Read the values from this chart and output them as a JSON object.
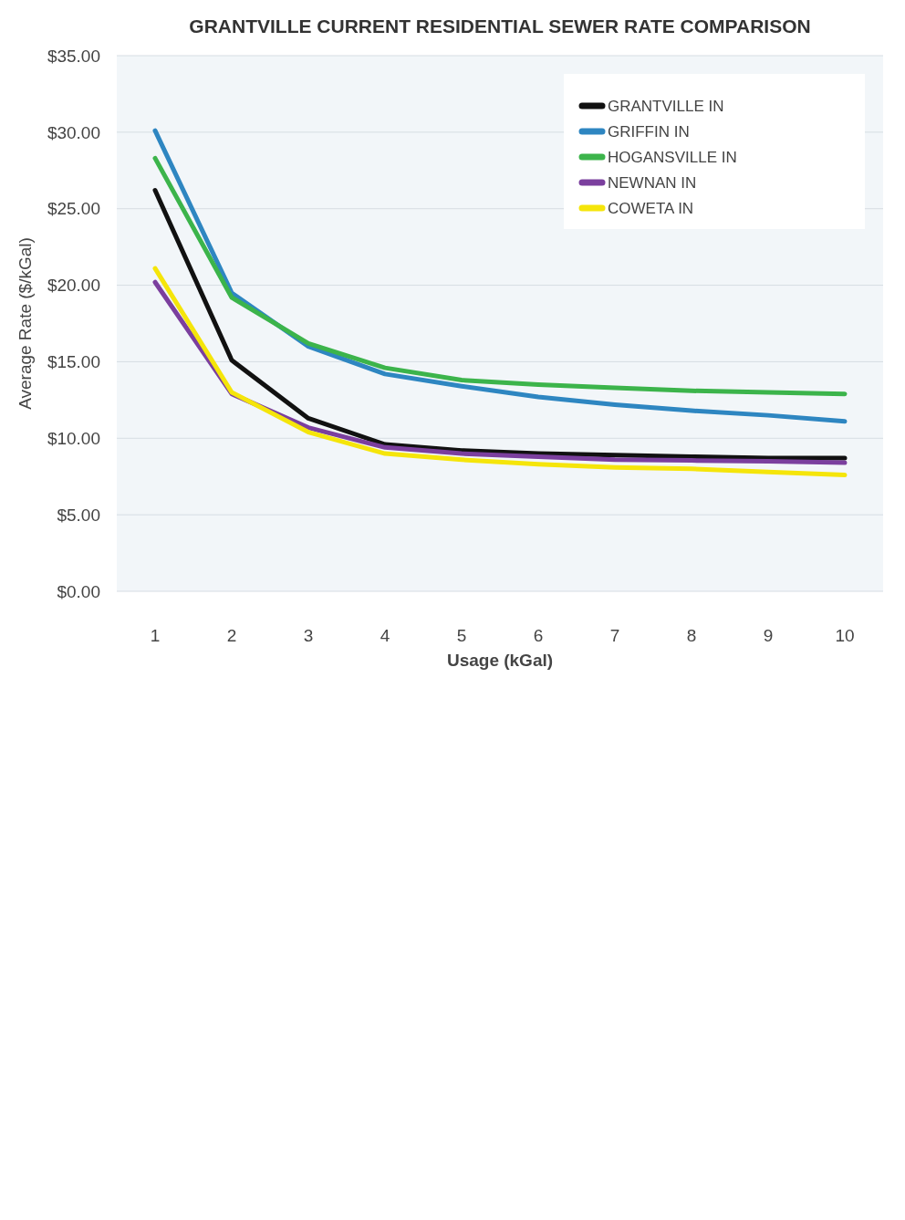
{
  "chart_data": {
    "type": "line",
    "title": "GRANTVILLE CURRENT RESIDENTIAL SEWER RATE COMPARISON",
    "xlabel": "Usage (kGal)",
    "ylabel": "Average Rate ($/kGal)",
    "categories": [
      "1",
      "2",
      "3",
      "4",
      "5",
      "6",
      "7",
      "8",
      "9",
      "10"
    ],
    "ylim": [
      0,
      35
    ],
    "yticks": [
      {
        "value": 0,
        "label": "$0.00"
      },
      {
        "value": 5,
        "label": "$5.00"
      },
      {
        "value": 10,
        "label": "$10.00"
      },
      {
        "value": 15,
        "label": "$15.00"
      },
      {
        "value": 20,
        "label": "$20.00"
      },
      {
        "value": 25,
        "label": "$25.00"
      },
      {
        "value": 30,
        "label": "$30.00"
      },
      {
        "value": 35,
        "label": "$35.00"
      }
    ],
    "grid": "y",
    "legend": "top right",
    "marker": "none",
    "line_style": "solid",
    "series": [
      {
        "name": "GRANTVILLE IN",
        "color": "#111111",
        "values": [
          26.2,
          15.1,
          11.3,
          9.6,
          9.2,
          9.0,
          8.9,
          8.8,
          8.7,
          8.7
        ]
      },
      {
        "name": "GRIFFIN IN",
        "color": "#2e86c1",
        "values": [
          30.1,
          19.5,
          16.0,
          14.2,
          13.4,
          12.7,
          12.2,
          11.8,
          11.5,
          11.1
        ]
      },
      {
        "name": "HOGANSVILLE IN",
        "color": "#3cb44b",
        "values": [
          28.3,
          19.2,
          16.2,
          14.6,
          13.8,
          13.5,
          13.3,
          13.1,
          13.0,
          12.9
        ]
      },
      {
        "name": "NEWNAN IN",
        "color": "#7b3f9e",
        "values": [
          20.2,
          12.9,
          10.7,
          9.4,
          9.0,
          8.8,
          8.6,
          8.55,
          8.5,
          8.4
        ]
      },
      {
        "name": "COWETA IN",
        "color": "#f5e50a",
        "values": [
          21.1,
          13.0,
          10.4,
          9.0,
          8.6,
          8.3,
          8.1,
          8.0,
          7.8,
          7.6
        ]
      }
    ]
  }
}
